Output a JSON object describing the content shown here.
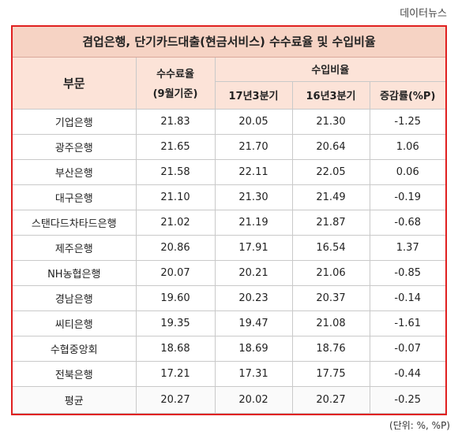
{
  "source": "데이터뉴스",
  "title": "겸업은행, 단기카드대출(현금서비스) 수수료율 및 수입비율",
  "headers": {
    "division": "부문",
    "fee_rate": "수수료율",
    "fee_rate_sub": "(9월기준)",
    "income_ratio": "수입비율",
    "q17": "17년3분기",
    "q16": "16년3분기",
    "change": "증감률(%P)"
  },
  "rows": [
    {
      "name": "기업은행",
      "fee": "21.83",
      "q17": "20.05",
      "q16": "21.30",
      "chg": "-1.25"
    },
    {
      "name": "광주은행",
      "fee": "21.65",
      "q17": "21.70",
      "q16": "20.64",
      "chg": "1.06"
    },
    {
      "name": "부산은행",
      "fee": "21.58",
      "q17": "22.11",
      "q16": "22.05",
      "chg": "0.06"
    },
    {
      "name": "대구은행",
      "fee": "21.10",
      "q17": "21.30",
      "q16": "21.49",
      "chg": "-0.19"
    },
    {
      "name": "스탠다드차타드은행",
      "fee": "21.02",
      "q17": "21.19",
      "q16": "21.87",
      "chg": "-0.68"
    },
    {
      "name": "제주은행",
      "fee": "20.86",
      "q17": "17.91",
      "q16": "16.54",
      "chg": "1.37"
    },
    {
      "name": "NH농협은행",
      "fee": "20.07",
      "q17": "20.21",
      "q16": "21.06",
      "chg": "-0.85"
    },
    {
      "name": "경남은행",
      "fee": "19.60",
      "q17": "20.23",
      "q16": "20.37",
      "chg": "-0.14"
    },
    {
      "name": "씨티은행",
      "fee": "19.35",
      "q17": "19.47",
      "q16": "21.08",
      "chg": "-1.61"
    },
    {
      "name": "수협중앙회",
      "fee": "18.68",
      "q17": "18.69",
      "q16": "18.76",
      "chg": "-0.07"
    },
    {
      "name": "전북은행",
      "fee": "17.21",
      "q17": "17.31",
      "q16": "17.75",
      "chg": "-0.44"
    }
  ],
  "average": {
    "name": "평균",
    "fee": "20.27",
    "q17": "20.02",
    "q16": "20.27",
    "chg": "-0.25"
  },
  "unit": "(단위: %, %P)"
}
